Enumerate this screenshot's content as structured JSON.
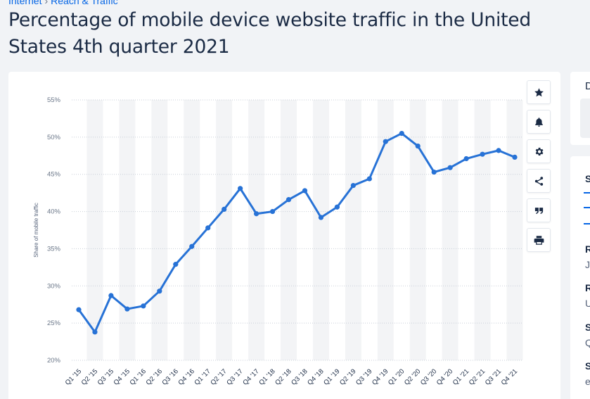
{
  "breadcrumb": {
    "item1": "Internet",
    "separator": "›",
    "item2": "Reach & Traffic"
  },
  "page_title": "Percentage of mobile device website traffic in the United States 4th quarter 2021",
  "toolbar": {
    "favorite_icon": "star-icon",
    "notify_icon": "bell-icon",
    "settings_icon": "gear-icon",
    "share_icon": "share-icon",
    "cite_icon": "quote-icon",
    "print_icon": "print-icon"
  },
  "side_panel": {
    "d_label": "D",
    "r1_label": "R",
    "r1_sub": "Ja",
    "r2_label": "R",
    "r2_sub": "U",
    "s1_label": "S",
    "s1_sub": "Q",
    "s2_label": "S",
    "s2_sub": "e",
    "s3_label": "S"
  },
  "colors": {
    "series": "#2772d6",
    "accent": "#0666e5",
    "grid": "#c9cfd8",
    "band": "#f3f4f6"
  },
  "chart_data": {
    "type": "line",
    "title": "",
    "xlabel": "",
    "ylabel": "Share of mobile traffic",
    "ylim": [
      20,
      55
    ],
    "yticks": [
      20,
      25,
      30,
      35,
      40,
      45,
      50,
      55
    ],
    "ytick_labels": [
      "20%",
      "25%",
      "30%",
      "35%",
      "40%",
      "45%",
      "50%",
      "55%"
    ],
    "grid": true,
    "categories": [
      "Q1 '15",
      "Q2 '15",
      "Q3 '15",
      "Q4 '15",
      "Q1 '16",
      "Q2 '16",
      "Q3 '16",
      "Q4 '16",
      "Q1 '17",
      "Q2 '17",
      "Q3 '17",
      "Q4 '17",
      "Q1 '18",
      "Q2 '18",
      "Q3 '18",
      "Q4 '18",
      "Q1 '19",
      "Q2 '19",
      "Q3 '19",
      "Q4 '19",
      "Q1 '20",
      "Q2 '20",
      "Q3 '20",
      "Q4 '20",
      "Q1 '21",
      "Q2 '21",
      "Q3 '21",
      "Q4 '21"
    ],
    "series": [
      {
        "values": [
          26.8,
          23.8,
          28.7,
          26.9,
          27.3,
          29.3,
          32.9,
          35.3,
          37.8,
          40.3,
          43.1,
          39.7,
          40.0,
          41.6,
          42.8,
          39.2,
          40.6,
          43.5,
          44.4,
          49.4,
          50.5,
          48.8,
          45.3,
          45.9,
          47.1,
          47.7,
          48.2,
          47.3
        ]
      }
    ]
  }
}
